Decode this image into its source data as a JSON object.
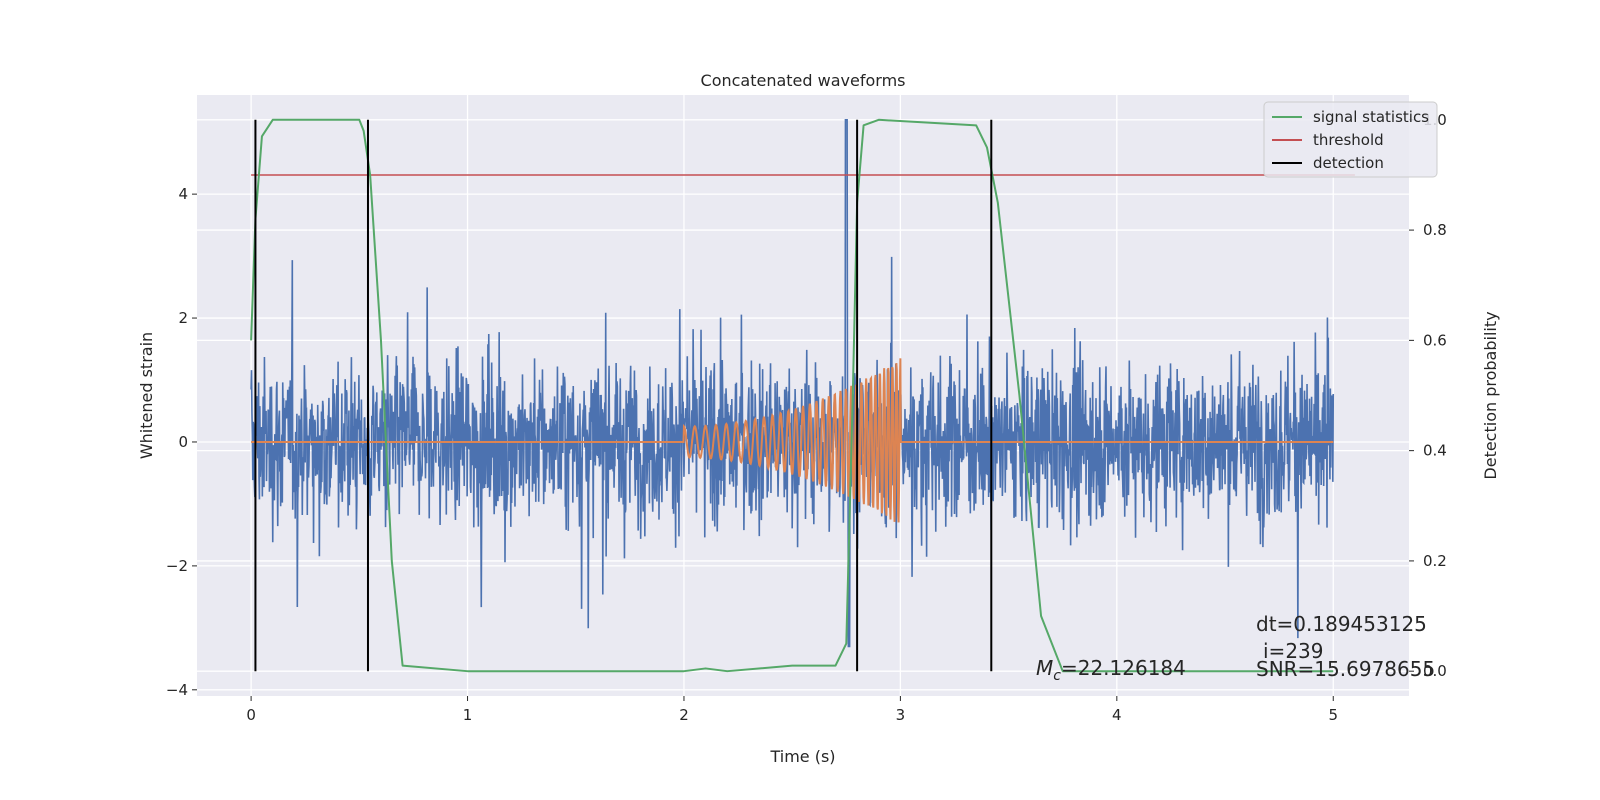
{
  "chart_data": {
    "type": "line",
    "title": "Concatenated waveforms",
    "xlabel": "Time (s)",
    "ylabel": "Whitened strain",
    "ylabel_right": "Detection probability",
    "xlim": [
      -0.25,
      5.35
    ],
    "ylim": [
      -4.1,
      5.6
    ],
    "ylim_right": [
      -0.045,
      1.045
    ],
    "xticks": [
      "0",
      "1",
      "2",
      "3",
      "4",
      "5"
    ],
    "yticks": [
      "4",
      "2",
      "0",
      "−2",
      "−4"
    ],
    "yticks_right": [
      "1.0",
      "0.8",
      "0.6",
      "0.4",
      "0.2",
      "0.0"
    ],
    "grid": true,
    "legend_position": "top-right",
    "colors": {
      "strain": "#4c72b0",
      "template": "#dd8452",
      "signal_statistics": "#55a868",
      "threshold": "#c44e52",
      "detection": "#000000",
      "background": "#eaeaf2"
    },
    "series": [
      {
        "name": "",
        "role": "noisy whitened strain",
        "axis": "left",
        "x_range": [
          0,
          5
        ],
        "amplitude_typical": 1.2,
        "amplitude_peak": 5.2
      },
      {
        "name": "",
        "role": "injected chirp waveform",
        "axis": "left",
        "x_range": [
          0,
          5
        ],
        "chirp_start": 2.0,
        "chirp_end": 3.0,
        "amplitude_start": 0.25,
        "amplitude_end": 1.35
      },
      {
        "name": "signal statistics",
        "axis": "right",
        "x": [
          0.0,
          0.02,
          0.05,
          0.1,
          0.5,
          0.52,
          0.55,
          0.6,
          0.65,
          0.7,
          1.0,
          2.0,
          2.1,
          2.2,
          2.5,
          2.7,
          2.75,
          2.78,
          2.8,
          2.83,
          2.9,
          3.35,
          3.4,
          3.45,
          3.55,
          3.65,
          3.75,
          5.0
        ],
        "y": [
          0.6,
          0.82,
          0.97,
          1.0,
          1.0,
          0.98,
          0.9,
          0.6,
          0.2,
          0.01,
          0.0,
          0.0,
          0.005,
          0.0,
          0.01,
          0.01,
          0.05,
          0.5,
          0.85,
          0.99,
          1.0,
          0.99,
          0.95,
          0.85,
          0.5,
          0.1,
          0.0,
          0.0
        ]
      },
      {
        "name": "threshold",
        "axis": "right",
        "x": [
          0.0,
          5.1
        ],
        "y": [
          0.9,
          0.9
        ]
      },
      {
        "name": "detection",
        "axis": "right",
        "x": [
          0.02,
          0.54,
          2.8,
          3.42
        ],
        "y_range": [
          0.0,
          1.0
        ]
      }
    ],
    "annotations": {
      "mc_symbol": "M",
      "mc_subscript": "c",
      "mc_value": "=22.126184",
      "dt": "dt=0.189453125",
      "i": "i=239",
      "snr": "SNR=15.6978655"
    }
  }
}
